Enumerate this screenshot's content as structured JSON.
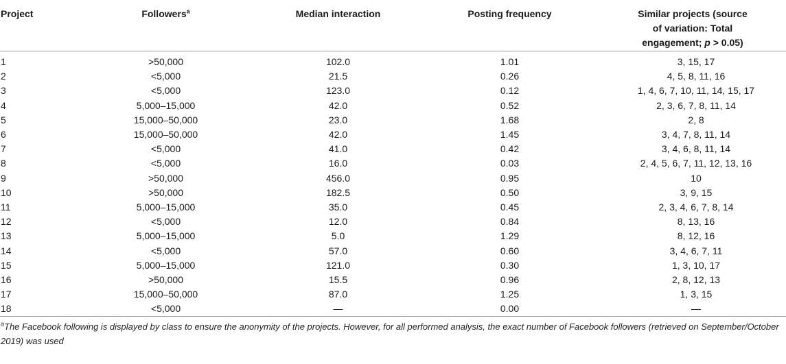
{
  "table": {
    "headers": {
      "project": "Project",
      "followers": "Followers",
      "followers_mark": "a",
      "median": "Median interaction",
      "posting": "Posting frequency",
      "similar_line1": "Similar projects (source",
      "similar_line2": "of variation: Total",
      "similar_line3_a": "engagement; ",
      "similar_line3_p": "p",
      "similar_line3_b": " > 0.05)"
    },
    "rows": [
      {
        "project": "1",
        "followers": ">50,000",
        "median": "102.0",
        "posting": "1.01",
        "similar": "3, 15, 17"
      },
      {
        "project": "2",
        "followers": "<5,000",
        "median": "21.5",
        "posting": "0.26",
        "similar": "4, 5, 8, 11, 16"
      },
      {
        "project": "3",
        "followers": "<5,000",
        "median": "123.0",
        "posting": "0.12",
        "similar": "1, 4, 6, 7, 10, 11, 14, 15, 17"
      },
      {
        "project": "4",
        "followers": "5,000–15,000",
        "median": "42.0",
        "posting": "0.52",
        "similar": "2, 3, 6, 7, 8, 11, 14"
      },
      {
        "project": "5",
        "followers": "15,000–50,000",
        "median": "23.0",
        "posting": "1.68",
        "similar": "2, 8"
      },
      {
        "project": "6",
        "followers": "15,000–50,000",
        "median": "42.0",
        "posting": "1.45",
        "similar": "3, 4, 7, 8, 11, 14"
      },
      {
        "project": "7",
        "followers": "<5,000",
        "median": "41.0",
        "posting": "0.42",
        "similar": "3, 4, 6, 8, 11, 14"
      },
      {
        "project": "8",
        "followers": "<5,000",
        "median": "16.0",
        "posting": "0.03",
        "similar": "2, 4, 5, 6, 7, 11, 12, 13, 16"
      },
      {
        "project": "9",
        "followers": ">50,000",
        "median": "456.0",
        "posting": "0.95",
        "similar": "10"
      },
      {
        "project": "10",
        "followers": ">50,000",
        "median": "182.5",
        "posting": "0.50",
        "similar": "3, 9, 15"
      },
      {
        "project": "11",
        "followers": "5,000–15,000",
        "median": "35.0",
        "posting": "0.45",
        "similar": "2, 3, 4, 6, 7, 8, 14"
      },
      {
        "project": "12",
        "followers": "<5,000",
        "median": "12.0",
        "posting": "0.84",
        "similar": "8, 13, 16"
      },
      {
        "project": "13",
        "followers": "5,000–15,000",
        "median": "5.0",
        "posting": "1.29",
        "similar": "8, 12, 16"
      },
      {
        "project": "14",
        "followers": "<5,000",
        "median": "57.0",
        "posting": "0.60",
        "similar": "3, 4, 6, 7, 11"
      },
      {
        "project": "15",
        "followers": "5,000–15,000",
        "median": "121.0",
        "posting": "0.30",
        "similar": "1, 3, 10, 17"
      },
      {
        "project": "16",
        "followers": ">50,000",
        "median": "15.5",
        "posting": "0.96",
        "similar": "2, 8, 12, 13"
      },
      {
        "project": "17",
        "followers": "15,000–50,000",
        "median": "87.0",
        "posting": "1.25",
        "similar": "1, 3, 15"
      },
      {
        "project": "18",
        "followers": "<5,000",
        "median": "—",
        "posting": "0.00",
        "similar": "—"
      }
    ]
  },
  "footnote": {
    "mark": "a",
    "text": "The Facebook following is displayed by class to ensure the anonymity of the projects. However, for all performed analysis, the exact number of Facebook followers (retrieved on September/October 2019) was used"
  }
}
